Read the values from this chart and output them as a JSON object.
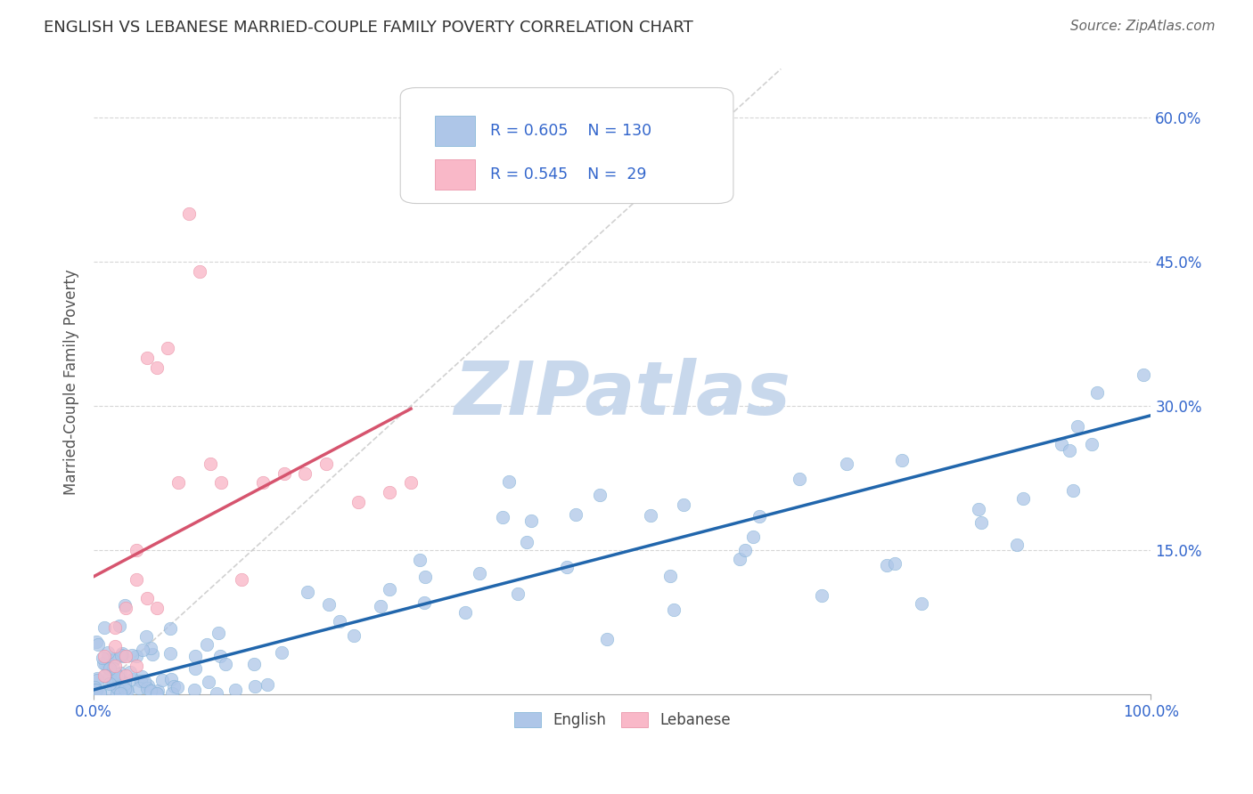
{
  "title": "ENGLISH VS LEBANESE MARRIED-COUPLE FAMILY POVERTY CORRELATION CHART",
  "source": "Source: ZipAtlas.com",
  "ylabel": "Married-Couple Family Poverty",
  "english_R": 0.605,
  "english_N": 130,
  "lebanese_R": 0.545,
  "lebanese_N": 29,
  "ytick_vals": [
    0.15,
    0.3,
    0.45,
    0.6
  ],
  "ytick_labels": [
    "15.0%",
    "30.0%",
    "45.0%",
    "60.0%"
  ],
  "english_color": "#aec6e8",
  "english_edge_color": "#7aafd4",
  "english_line_color": "#2166ac",
  "lebanese_color": "#f9b8c8",
  "lebanese_edge_color": "#e88aa0",
  "lebanese_line_color": "#d6546e",
  "ref_line_color": "#cccccc",
  "grid_color": "#cccccc",
  "watermark_text": "ZIPatlas",
  "watermark_color": "#c8d8ec",
  "background_color": "#ffffff",
  "text_color": "#3366cc",
  "title_color": "#333333",
  "source_color": "#666666",
  "ylabel_color": "#555555"
}
